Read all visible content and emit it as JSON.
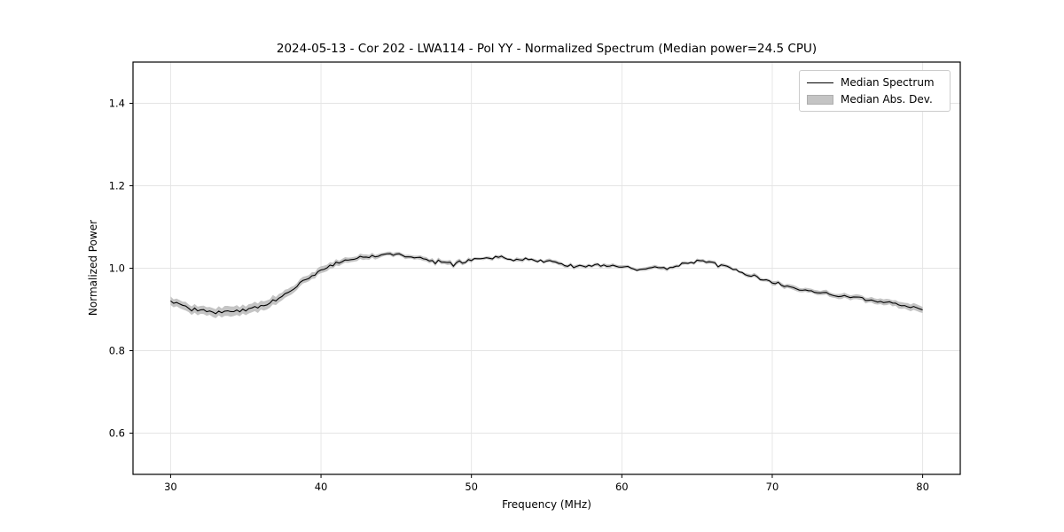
{
  "chart_data": {
    "type": "line",
    "title": "2024-05-13 - Cor 202 - LWA114 - Pol YY - Normalized Spectrum (Median power=24.5 CPU)",
    "xlabel": "Frequency (MHz)",
    "ylabel": "Normalized Power",
    "xlim": [
      27.5,
      82.5
    ],
    "ylim": [
      0.5,
      1.5
    ],
    "xticks": [
      30,
      40,
      50,
      60,
      70,
      80
    ],
    "xtick_labels": [
      "30",
      "40",
      "50",
      "60",
      "70",
      "80"
    ],
    "yticks": [
      0.6,
      0.8,
      1.0,
      1.2,
      1.4
    ],
    "ytick_labels": [
      "0.6",
      "0.8",
      "1.0",
      "1.2",
      "1.4"
    ],
    "grid": true,
    "legend": {
      "position": "upper right",
      "labels": [
        "Median Spectrum",
        "Median Abs. Dev."
      ]
    },
    "colors": {
      "line": "#000000",
      "band": "#c4c4c4",
      "grid": "#e4e4e4",
      "spine": "#000000",
      "background": "#ffffff"
    },
    "series": [
      {
        "name": "Median Spectrum",
        "x": [
          30,
          31,
          32,
          33,
          34,
          35,
          36,
          37,
          38,
          39,
          40,
          41,
          42,
          43,
          44,
          45,
          46,
          47,
          48,
          49,
          50,
          51,
          52,
          53,
          54,
          55,
          56,
          57,
          58,
          59,
          60,
          61,
          62,
          63,
          64,
          65,
          66,
          67,
          68,
          69,
          70,
          71,
          72,
          73,
          74,
          75,
          76,
          77,
          78,
          79,
          80
        ],
        "y": [
          0.92,
          0.906,
          0.898,
          0.893,
          0.894,
          0.899,
          0.908,
          0.923,
          0.947,
          0.973,
          0.995,
          1.012,
          1.022,
          1.028,
          1.031,
          1.033,
          1.026,
          1.022,
          1.016,
          1.01,
          1.021,
          1.024,
          1.026,
          1.02,
          1.019,
          1.017,
          1.008,
          1.004,
          1.007,
          1.008,
          1.004,
          0.998,
          1.001,
          1.0,
          1.01,
          1.016,
          1.014,
          1.006,
          0.99,
          0.978,
          0.966,
          0.956,
          0.947,
          0.941,
          0.936,
          0.931,
          0.926,
          0.921,
          0.914,
          0.908,
          0.899
        ]
      }
    ],
    "mad": [
      0.01,
      0.01,
      0.01,
      0.011,
      0.012,
      0.011,
      0.011,
      0.01,
      0.009,
      0.008,
      0.008,
      0.007,
      0.006,
      0.006,
      0.005,
      0.005,
      0.005,
      0.005,
      0.005,
      0.005,
      0.004,
      0.004,
      0.004,
      0.004,
      0.004,
      0.004,
      0.004,
      0.004,
      0.004,
      0.004,
      0.004,
      0.004,
      0.004,
      0.004,
      0.004,
      0.004,
      0.004,
      0.004,
      0.004,
      0.004,
      0.005,
      0.005,
      0.005,
      0.005,
      0.006,
      0.006,
      0.006,
      0.007,
      0.007,
      0.008,
      0.008
    ],
    "render": {
      "substeps": 5,
      "seed": 42,
      "line_noise": 0.0035,
      "band_noise": 0.0012,
      "spike_prob": 0.05,
      "spike_amp": 0.01
    }
  }
}
